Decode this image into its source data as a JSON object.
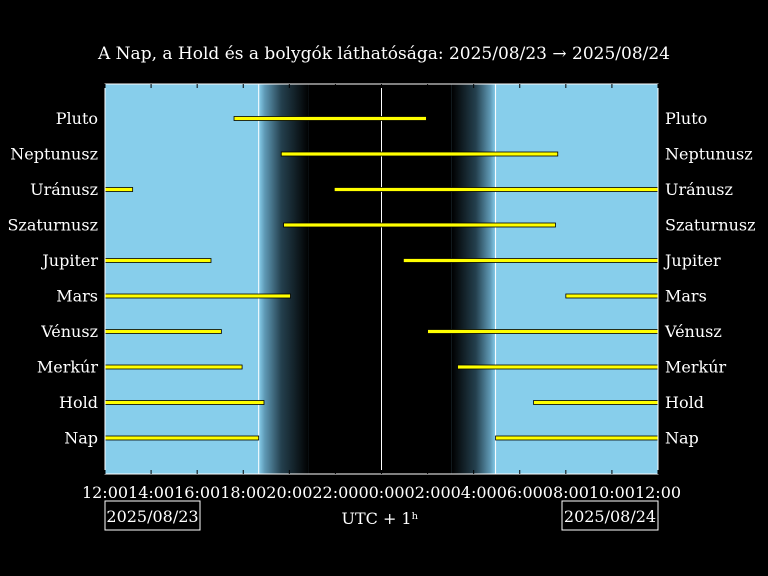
{
  "chart_data": {
    "type": "bar",
    "title": "A Nap, a Hold és a bolygók láthatósága: 2025/08/23 → 2025/08/24",
    "xlabel": "UTC + 1ʰ",
    "xlim": [
      12,
      36
    ],
    "x_ticks": [
      "12:00",
      "14:00",
      "16:00",
      "18:00",
      "20:00",
      "22:00",
      "00:00",
      "02:00",
      "04:00",
      "06:00",
      "08:00",
      "10:00",
      "12:00"
    ],
    "date_left": "2025/08/23",
    "date_right": "2025/08/24",
    "colors": {
      "day": "#87ceeb",
      "night": "#000000",
      "bar": "#ffff00",
      "bar_edge": "#000000"
    },
    "night": {
      "sunset": 18.67,
      "dusk_end": 20.85,
      "midnight": 24.0,
      "dawn_start": 27.05,
      "sunrise": 28.95
    },
    "bodies": [
      {
        "name": "Nap",
        "intervals": [
          [
            12,
            18.67
          ],
          [
            28.95,
            36
          ]
        ]
      },
      {
        "name": "Hold",
        "intervals": [
          [
            12,
            18.9
          ],
          [
            30.6,
            36
          ]
        ]
      },
      {
        "name": "Merkúr",
        "intervals": [
          [
            12,
            17.95
          ],
          [
            27.3,
            36
          ]
        ]
      },
      {
        "name": "Vénusz",
        "intervals": [
          [
            12,
            17.05
          ],
          [
            26.0,
            36
          ]
        ]
      },
      {
        "name": "Mars",
        "intervals": [
          [
            12,
            20.05
          ],
          [
            32.0,
            36
          ]
        ]
      },
      {
        "name": "Jupiter",
        "intervals": [
          [
            12,
            16.6
          ],
          [
            24.95,
            36
          ]
        ]
      },
      {
        "name": "Szaturnusz",
        "intervals": [
          [
            19.75,
            31.55
          ]
        ]
      },
      {
        "name": "Uránusz",
        "intervals": [
          [
            12,
            13.2
          ],
          [
            21.95,
            36
          ]
        ]
      },
      {
        "name": "Neptunusz",
        "intervals": [
          [
            19.65,
            31.65
          ]
        ]
      },
      {
        "name": "Pluto",
        "intervals": [
          [
            17.6,
            25.95
          ]
        ]
      }
    ]
  }
}
